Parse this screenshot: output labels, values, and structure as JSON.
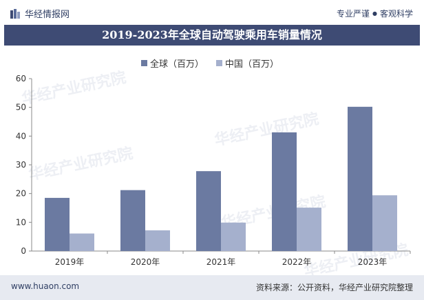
{
  "header": {
    "brand_name": "华经情报网",
    "slogan_left": "专业严谨",
    "slogan_sep": "●",
    "slogan_right": "客观科学"
  },
  "colors": {
    "series_global": "#6b7aa1",
    "series_china": "#a5b0cd",
    "title_band": "#3e4b74"
  },
  "chart_data": {
    "type": "bar",
    "title": "2019-2023年全球自动驾驶乘用车销量情况",
    "categories": [
      "2019年",
      "2020年",
      "2021年",
      "2022年",
      "2023年"
    ],
    "series": [
      {
        "name": "全球（百万）",
        "values": [
          18.5,
          21.2,
          27.8,
          41.3,
          50.2
        ]
      },
      {
        "name": "中国（百万）",
        "values": [
          6.1,
          7.2,
          9.9,
          15.1,
          19.4
        ]
      }
    ],
    "yticks": [
      0,
      10,
      20,
      30,
      40,
      50,
      60
    ],
    "ylim": [
      0,
      60
    ],
    "xlabel": "",
    "ylabel": "",
    "grid": false,
    "legend_position": "top-center"
  },
  "footer": {
    "site": "www.huaon.com",
    "source_label": "资料来源：",
    "source_text": "公开资料，华经产业研究院整理"
  },
  "watermark": {
    "text": "华经产业研究院",
    "url": "www.huaon.com"
  }
}
